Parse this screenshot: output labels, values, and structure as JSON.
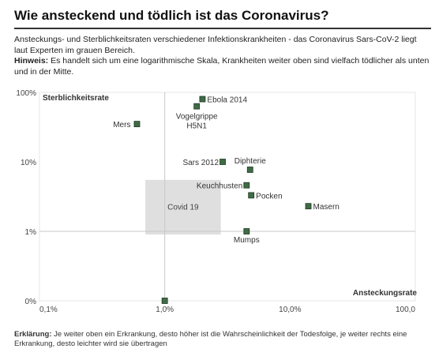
{
  "header": {
    "title": "Wie ansteckend und tödlich ist das Coronavirus?",
    "subtitle": "Ansteckungs- und Sterblichkeitsraten verschiedener Infektionskrankheiten - das Coronavirus Sars-CoV-2 liegt laut Experten im grauen Bereich.",
    "note_label": "Hinweis:",
    "note_text": "Es handelt sich um eine logarithmische Skala, Krankheiten weiter oben sind vielfach tödlicher als unten und in der Mitte."
  },
  "chart_data": {
    "type": "scatter",
    "xscale": "log",
    "yscale": "log",
    "xlabel": "Ansteckungsrate",
    "ylabel": "Sterblichkeitsrate",
    "xlim": [
      0.1,
      100
    ],
    "ylim": [
      0.1,
      100
    ],
    "xticks": [
      {
        "value": 0.1,
        "label": "0,1%"
      },
      {
        "value": 1,
        "label": "1,0%"
      },
      {
        "value": 10,
        "label": "10,0%"
      },
      {
        "value": 100,
        "label": "100,0"
      }
    ],
    "yticks": [
      {
        "value": 0.1,
        "label": "0%"
      },
      {
        "value": 1,
        "label": "1%"
      },
      {
        "value": 10,
        "label": "10%"
      },
      {
        "value": 100,
        "label": "100%"
      }
    ],
    "reference_lines": {
      "x": 1,
      "y": 1
    },
    "highlight_region": {
      "label": "Covid 19",
      "x": [
        0.7,
        2.8
      ],
      "y": [
        0.9,
        5.5
      ]
    },
    "points": [
      {
        "label": "Ebola 2014",
        "x": 2.0,
        "y": 80
      },
      {
        "label": "Vogelgrippe\nH5N1",
        "x": 1.8,
        "y": 63
      },
      {
        "label": "Mers",
        "x": 0.6,
        "y": 35
      },
      {
        "label": "Sars 2012",
        "x": 2.9,
        "y": 10
      },
      {
        "label": "Diphterie",
        "x": 4.8,
        "y": 7.7
      },
      {
        "label": "Keuchhusten",
        "x": 4.5,
        "y": 4.6
      },
      {
        "label": "Pocken",
        "x": 4.9,
        "y": 3.3
      },
      {
        "label": "Masern",
        "x": 14,
        "y": 2.3
      },
      {
        "label": "Mumps",
        "x": 4.5,
        "y": 1.0
      },
      {
        "label": "",
        "x": 1.0,
        "y": 0.1
      }
    ],
    "colors": {
      "point": "#3f6b45",
      "region": "#d9d9d9",
      "grid": "#c8c8c8",
      "axis": "#777777"
    }
  },
  "footer": {
    "label": "Erklärung:",
    "text": "Je weiter oben ein Erkrankung, desto höher ist die Wahrscheinlichkeit der Todesfolge, je weiter rechts eine Erkrankung, desto leichter wird sie übertragen"
  }
}
